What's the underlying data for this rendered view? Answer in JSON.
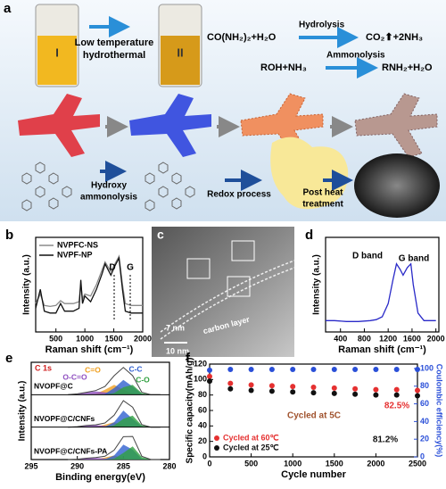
{
  "panel_a": {
    "label": "a",
    "vial_1": "I",
    "vial_2": "II",
    "step_1": [
      "Low temperature",
      "hydrothermal"
    ],
    "reaction_1": {
      "reactants": "CO(NH₂)₂+H₂O",
      "condition": "Hydrolysis",
      "products": "CO₂⬆+2NH₃"
    },
    "reaction_2": {
      "reactants": "ROH+NH₃",
      "condition": "Ammonolysis",
      "products": "RNH₂+H₂O"
    },
    "step_2": [
      "Hydroxy",
      "ammonolysis"
    ],
    "step_3": "Redox process",
    "step_4": [
      "Post heat",
      "treatment"
    ]
  },
  "panel_c": {
    "label": "c",
    "annotations": [
      "7 nm",
      "carbon layer",
      "10 nm"
    ]
  },
  "chart_data": [
    {
      "type": "line",
      "label": "b",
      "xlabel": "Raman shift (cm⁻¹)",
      "ylabel": "Intensity (a.u.)",
      "xlim": [
        150,
        2000
      ],
      "xticks": [
        500,
        1000,
        1500,
        2000
      ],
      "ylim": [
        0,
        1
      ],
      "legend": "upper left",
      "x": [
        150,
        230,
        300,
        400,
        500,
        580,
        650,
        800,
        900,
        930,
        960,
        1000,
        1100,
        1200,
        1300,
        1350,
        1450,
        1520,
        1590,
        1650,
        1700,
        1800,
        1900,
        2000
      ],
      "series": [
        {
          "name": "NVPFC-NS",
          "color": "#8a8a8a",
          "values": [
            0.3,
            0.4,
            0.28,
            0.27,
            0.28,
            0.33,
            0.3,
            0.3,
            0.32,
            0.5,
            0.35,
            0.4,
            0.38,
            0.5,
            0.66,
            0.74,
            0.64,
            0.72,
            0.8,
            0.5,
            0.3,
            0.28,
            0.28,
            0.28
          ]
        },
        {
          "name": "NVPF-NP",
          "color": "#111111",
          "values": [
            0.25,
            0.45,
            0.22,
            0.2,
            0.2,
            0.3,
            0.22,
            0.22,
            0.25,
            0.55,
            0.3,
            0.38,
            0.32,
            0.45,
            0.62,
            0.72,
            0.6,
            0.7,
            0.78,
            0.45,
            0.22,
            0.2,
            0.2,
            0.2
          ]
        }
      ],
      "annotations": [
        "D",
        "G"
      ]
    },
    {
      "type": "line",
      "label": "d",
      "xlabel": "Raman shift (cm⁻¹)",
      "ylabel": "Intensity (a.u.)",
      "xlim": [
        150,
        2050
      ],
      "xticks": [
        400,
        800,
        1200,
        1600,
        2000
      ],
      "ylim": [
        0,
        1
      ],
      "x": [
        150,
        300,
        500,
        700,
        900,
        1000,
        1100,
        1200,
        1280,
        1340,
        1400,
        1450,
        1520,
        1580,
        1620,
        1700,
        1800,
        1900,
        2000
      ],
      "series": [
        {
          "color": "#2a2ac8",
          "values": [
            0.12,
            0.12,
            0.11,
            0.11,
            0.12,
            0.13,
            0.16,
            0.3,
            0.55,
            0.72,
            0.66,
            0.6,
            0.68,
            0.72,
            0.5,
            0.2,
            0.12,
            0.12,
            0.12
          ]
        }
      ],
      "annotations": [
        "D band",
        "G band"
      ]
    },
    {
      "type": "xps",
      "label": "e",
      "xlabel": "Binding energy(eV)",
      "ylabel": "Intensity (a.u.)",
      "core_level": "C 1s",
      "xlim": [
        295,
        280
      ],
      "xticks": [
        295,
        290,
        285,
        280
      ],
      "ylim": [
        0,
        1.8
      ],
      "x": [
        291,
        290,
        289,
        288,
        287,
        286,
        285,
        284,
        283,
        282,
        281
      ],
      "components": [
        {
          "name": "C=O",
          "color": "#f0a020"
        },
        {
          "name": "O-C=O",
          "color": "#9050c0"
        },
        {
          "name": "C-C",
          "color": "#3060d0"
        },
        {
          "name": "C-O",
          "color": "#30a040"
        }
      ],
      "samples": [
        {
          "name": "NVOPF@C",
          "envelope": [
            0,
            0.05,
            0.15,
            0.25,
            0.5,
            1.15,
            1.65,
            1.15,
            0.15,
            0,
            0
          ],
          "components": [
            [
              0,
              0,
              0,
              0.05,
              0.3,
              0.6,
              0.3,
              0.05,
              0,
              0,
              0
            ],
            [
              0,
              0.05,
              0.15,
              0.2,
              0.15,
              0.05,
              0,
              0,
              0,
              0,
              0
            ],
            [
              0,
              0,
              0,
              0,
              0.05,
              0.4,
              0.9,
              0.5,
              0.05,
              0,
              0
            ],
            [
              0,
              0,
              0,
              0,
              0,
              0.1,
              0.45,
              0.6,
              0.1,
              0,
              0
            ]
          ]
        },
        {
          "name": "NVOPF@C/CNFs",
          "envelope": [
            0,
            0.03,
            0.1,
            0.14,
            0.25,
            0.72,
            1.6,
            1.2,
            0.15,
            0,
            0
          ],
          "components": [
            [
              0,
              0,
              0,
              0.02,
              0.15,
              0.3,
              0.1,
              0,
              0,
              0,
              0
            ],
            [
              0,
              0.03,
              0.1,
              0.12,
              0.08,
              0.02,
              0,
              0,
              0,
              0,
              0
            ],
            [
              0,
              0,
              0,
              0,
              0.02,
              0.3,
              1.0,
              0.5,
              0.05,
              0,
              0
            ],
            [
              0,
              0,
              0,
              0,
              0,
              0.1,
              0.5,
              0.7,
              0.1,
              0,
              0
            ]
          ]
        },
        {
          "name": "NVOPF@C/CNFs-PA",
          "envelope": [
            0,
            0.02,
            0.08,
            0.12,
            0.2,
            0.57,
            1.38,
            1.4,
            0.2,
            0,
            0
          ],
          "components": [
            [
              0,
              0,
              0,
              0.02,
              0.12,
              0.25,
              0.08,
              0,
              0,
              0,
              0
            ],
            [
              0,
              0.02,
              0.08,
              0.1,
              0.06,
              0.02,
              0,
              0,
              0,
              0,
              0
            ],
            [
              0,
              0,
              0,
              0,
              0.02,
              0.25,
              0.9,
              0.6,
              0.05,
              0,
              0
            ],
            [
              0,
              0,
              0,
              0,
              0,
              0.05,
              0.4,
              0.8,
              0.15,
              0,
              0
            ]
          ]
        }
      ]
    },
    {
      "type": "scatter",
      "label": "f",
      "xlabel": "Cycle number",
      "ylabel": "Specific capacity(mAh/g)",
      "y2label": "Coulombic efficiency(%)",
      "xlim": [
        0,
        2500
      ],
      "xticks": [
        0,
        500,
        1000,
        1500,
        2000,
        2500
      ],
      "ylim": [
        0,
        120
      ],
      "yticks": [
        0,
        20,
        40,
        60,
        80,
        100,
        120
      ],
      "y2lim": [
        0,
        105
      ],
      "y2ticks": [
        0,
        20,
        40,
        60,
        80,
        100
      ],
      "legend": "lower left",
      "x": [
        0,
        250,
        500,
        750,
        1000,
        1250,
        1500,
        1750,
        2000,
        2250,
        2500
      ],
      "series": [
        {
          "name": "Cycled at 60℃",
          "color": "#e53030",
          "values": [
            104,
            95,
            93,
            92,
            91,
            90,
            89,
            88,
            87,
            87,
            86
          ]
        },
        {
          "name": "Cycled at 25℃",
          "color": "#111111",
          "values": [
            98,
            88,
            86,
            85,
            84,
            83,
            82,
            81,
            80,
            80,
            79
          ]
        },
        {
          "color": "#2a4fd8",
          "axis": "y2",
          "values": [
            98,
            99,
            99,
            99,
            99,
            99,
            99,
            99,
            99,
            99,
            99
          ]
        }
      ],
      "annotations": [
        "Cycled at 5C",
        "82.5%",
        "81.2%"
      ]
    }
  ]
}
